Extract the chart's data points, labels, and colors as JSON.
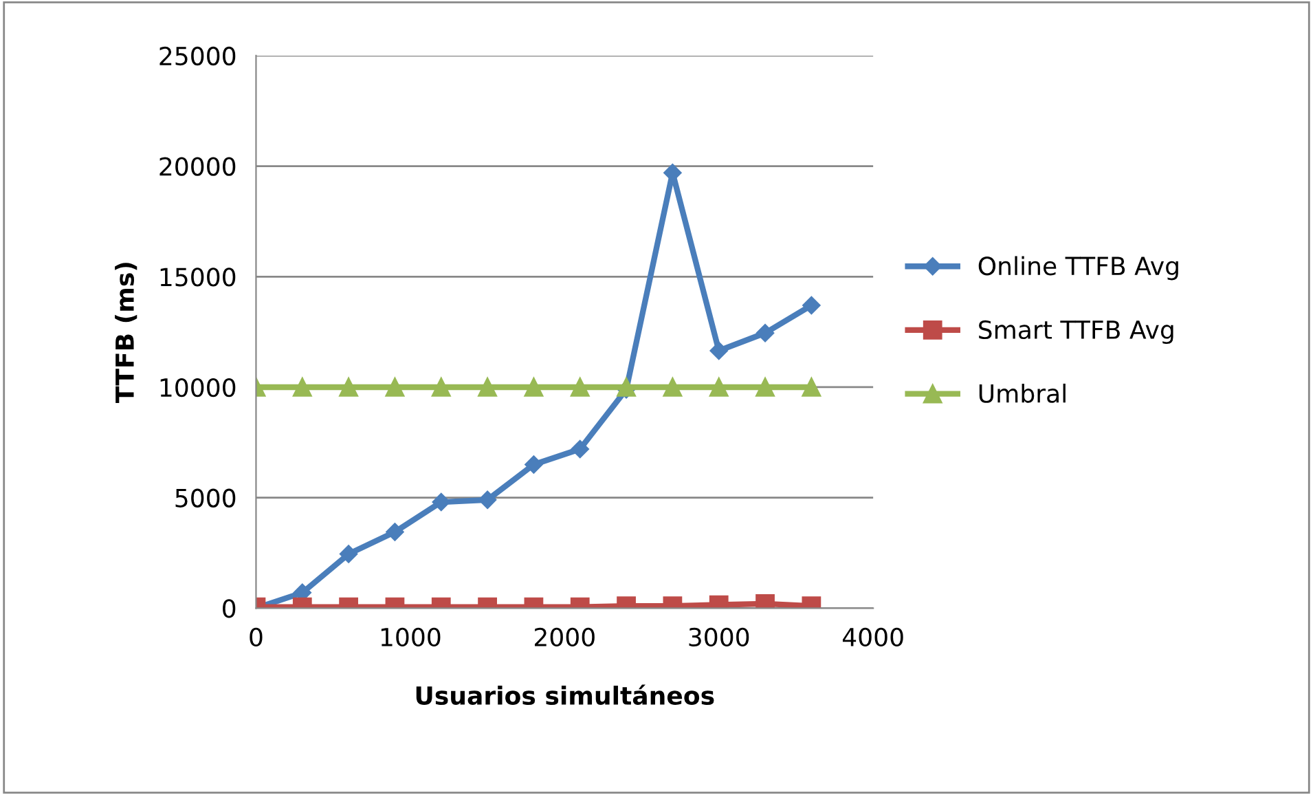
{
  "chart_data": {
    "type": "line",
    "xlabel": "Usuarios simultáneos",
    "ylabel": "TTFB (ms)",
    "x": [
      0,
      300,
      600,
      900,
      1200,
      1500,
      1800,
      2100,
      2400,
      2700,
      3000,
      3300,
      3600
    ],
    "series": [
      {
        "name": "Online TTFB Avg",
        "color": "#4a7ebb",
        "marker": "diamond",
        "values": [
          0,
          700,
          2450,
          3450,
          4800,
          4900,
          6500,
          7200,
          9900,
          19700,
          11650,
          12450,
          13700
        ]
      },
      {
        "name": "Smart TTFB Avg",
        "color": "#be4b48",
        "marker": "square",
        "values": [
          50,
          50,
          50,
          50,
          50,
          50,
          50,
          50,
          100,
          100,
          150,
          200,
          100
        ]
      },
      {
        "name": "Umbral",
        "color": "#98b954",
        "marker": "triangle",
        "values": [
          10000,
          10000,
          10000,
          10000,
          10000,
          10000,
          10000,
          10000,
          10000,
          10000,
          10000,
          10000,
          10000
        ]
      }
    ],
    "xlim": [
      0,
      4000
    ],
    "xticks": [
      0,
      1000,
      2000,
      3000,
      4000
    ],
    "ylim": [
      0,
      25000
    ],
    "yticks": [
      0,
      5000,
      10000,
      15000,
      20000,
      25000
    ],
    "grid": "y",
    "legend": "right"
  }
}
